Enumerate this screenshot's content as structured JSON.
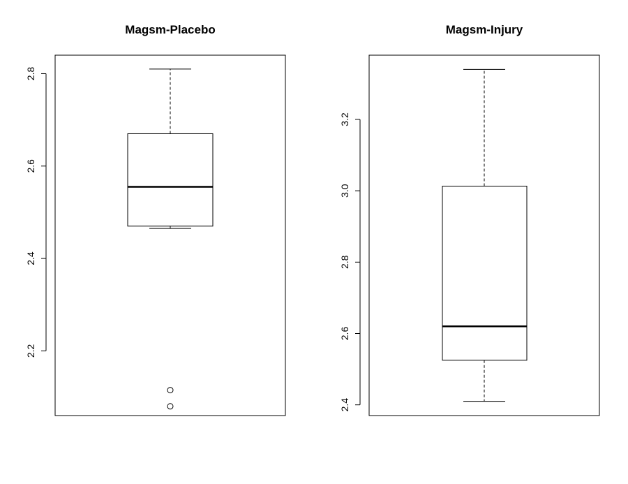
{
  "chart_data": [
    {
      "type": "boxplot",
      "title": "Magsm-Placebo",
      "ylim": [
        2.06,
        2.84
      ],
      "yticks": [
        2.2,
        2.4,
        2.6,
        2.8
      ],
      "ytick_labels": [
        "2.2",
        "2.4",
        "2.6",
        "2.8"
      ],
      "box": {
        "whisker_low": 2.465,
        "q1": 2.47,
        "median": 2.555,
        "q3": 2.67,
        "whisker_high": 2.81
      },
      "outliers": [
        2.115,
        2.08
      ],
      "grid": false
    },
    {
      "type": "boxplot",
      "title": "Magsm-Injury",
      "ylim": [
        2.37,
        3.38
      ],
      "yticks": [
        2.4,
        2.6,
        2.8,
        3.0,
        3.2
      ],
      "ytick_labels": [
        "2.4",
        "2.6",
        "2.8",
        "3.0",
        "3.2"
      ],
      "box": {
        "whisker_low": 2.41,
        "q1": 2.525,
        "median": 2.62,
        "q3": 3.013,
        "whisker_high": 3.34
      },
      "outliers": [],
      "grid": false
    }
  ]
}
